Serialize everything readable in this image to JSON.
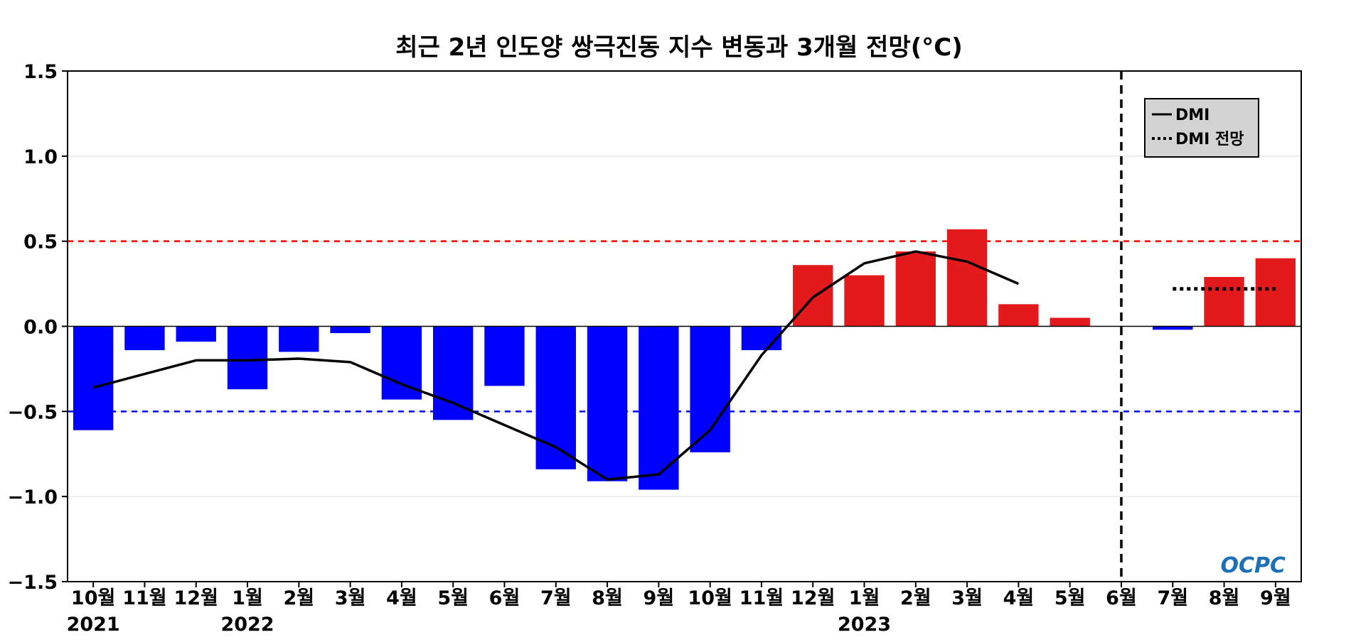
{
  "chart_data": {
    "type": "bar",
    "title": "최근 2년 인도양 쌍극진동 지수 변동과 3개월 전망(°C)",
    "xlabel": "",
    "ylabel": "",
    "ylim": [
      -1.5,
      1.5
    ],
    "yticks": [
      "1.5",
      "1.0",
      "0.5",
      "0.0",
      "−0.5",
      "−1.0",
      "−1.5"
    ],
    "ytick_values": [
      1.5,
      1.0,
      0.5,
      0.0,
      -0.5,
      -1.0,
      -1.5
    ],
    "categories": [
      "10월",
      "11월",
      "12월",
      "1월",
      "2월",
      "3월",
      "4월",
      "5월",
      "6월",
      "7월",
      "8월",
      "9월",
      "10월",
      "11월",
      "12월",
      "1월",
      "2월",
      "3월",
      "4월",
      "5월",
      "6월",
      "7월",
      "8월",
      "9월"
    ],
    "year_labels": [
      {
        "index": 0,
        "label": "2021"
      },
      {
        "index": 3,
        "label": "2022"
      },
      {
        "index": 15,
        "label": "2023"
      }
    ],
    "bar_values": [
      -0.61,
      -0.14,
      -0.09,
      -0.37,
      -0.15,
      -0.04,
      -0.43,
      -0.55,
      -0.35,
      -0.84,
      -0.91,
      -0.96,
      -0.74,
      -0.14,
      0.36,
      0.3,
      0.44,
      0.57,
      0.13,
      0.05,
      null,
      -0.02,
      0.29,
      0.4
    ],
    "positive_color": "#e31a1c",
    "negative_color": "#0000ff",
    "series": [
      {
        "name": "DMI",
        "style": "solid",
        "color": "#000000",
        "values": [
          -0.36,
          -0.28,
          -0.2,
          -0.2,
          -0.19,
          -0.21,
          -0.34,
          -0.45,
          -0.58,
          -0.71,
          -0.9,
          -0.87,
          -0.61,
          -0.17,
          0.17,
          0.37,
          0.44,
          0.38,
          0.25,
          null,
          null,
          null,
          null,
          null
        ]
      },
      {
        "name": "DMI 전망",
        "style": "dotted",
        "color": "#000000",
        "values": [
          null,
          null,
          null,
          null,
          null,
          null,
          null,
          null,
          null,
          null,
          null,
          null,
          null,
          null,
          null,
          null,
          null,
          null,
          null,
          null,
          null,
          0.22,
          0.22,
          0.22
        ]
      }
    ],
    "threshold_lines": [
      {
        "value": 0.5,
        "color": "#ff0000",
        "style": "dashed"
      },
      {
        "value": -0.5,
        "color": "#0000ff",
        "style": "dashed"
      }
    ],
    "forecast_divider_index": 20,
    "grid": true,
    "legend_position": "top-right",
    "logo_text": "OCPC"
  }
}
